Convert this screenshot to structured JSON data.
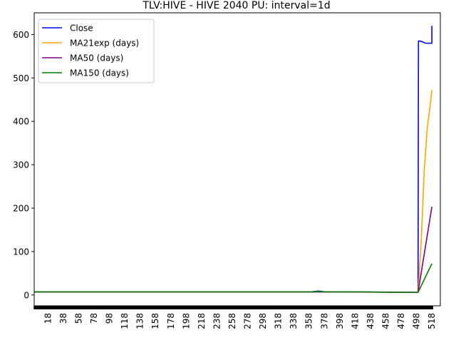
{
  "chart_data": {
    "type": "line",
    "title": "TLV:HIVE - HIVE 2040 PU: interval=1d",
    "xlabel": "",
    "ylabel": "",
    "xlim": [
      0,
      529
    ],
    "ylim": [
      -25,
      650
    ],
    "grid": false,
    "legend_position": "top-left",
    "x_ticks": [
      18,
      38,
      58,
      78,
      98,
      118,
      138,
      158,
      178,
      198,
      218,
      238,
      258,
      278,
      298,
      318,
      338,
      358,
      378,
      398,
      418,
      438,
      458,
      478,
      498,
      518
    ],
    "y_ticks": [
      0,
      100,
      200,
      300,
      400,
      500,
      600
    ],
    "series": [
      {
        "name": "Close",
        "color": "#0000ff",
        "x": [
          0,
          100,
          200,
          300,
          360,
          370,
          380,
          420,
          490,
          500,
          500.5,
          503,
          506,
          510,
          512,
          517,
          518,
          518
        ],
        "y": [
          7,
          7,
          7,
          7,
          7,
          9,
          7,
          7,
          6,
          6,
          585,
          585,
          583,
          580,
          580,
          580,
          580,
          620
        ]
      },
      {
        "name": "MA21exp (days)",
        "color": "#ffa500",
        "x": [
          0,
          100,
          200,
          300,
          400,
          490,
          500,
          504,
          508,
          512,
          516,
          518
        ],
        "y": [
          7,
          7,
          7,
          7,
          7,
          6,
          6,
          120,
          285,
          385,
          440,
          472
        ]
      },
      {
        "name": "MA50 (days)",
        "color": "#800080",
        "x": [
          0,
          100,
          200,
          300,
          400,
          490,
          500,
          518
        ],
        "y": [
          7,
          7,
          7,
          7,
          7,
          6,
          6,
          203
        ]
      },
      {
        "name": "MA150 (days)",
        "color": "#008000",
        "x": [
          0,
          100,
          200,
          300,
          360,
          370,
          380,
          420,
          490,
          500,
          518
        ],
        "y": [
          7,
          7,
          7,
          7,
          7,
          8,
          7,
          7,
          6,
          6,
          72
        ]
      }
    ]
  }
}
